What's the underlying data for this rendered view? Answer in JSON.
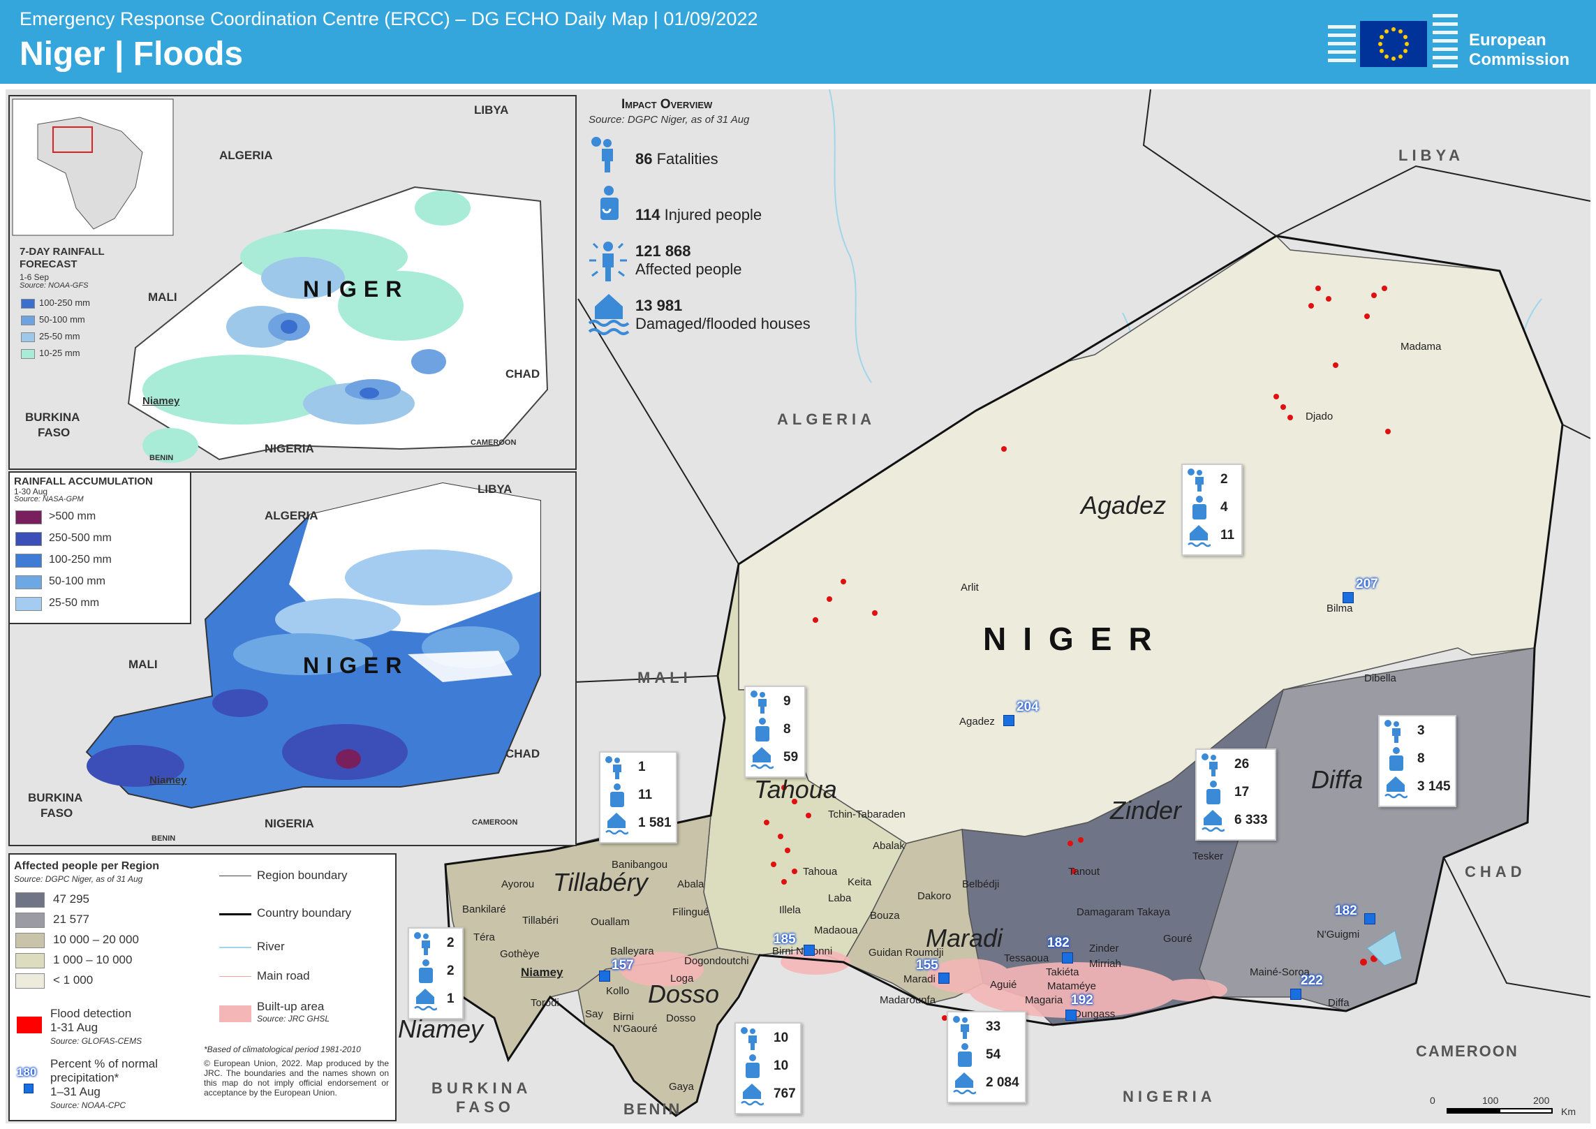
{
  "header": {
    "subtitle": "Emergency Response Coordination Centre (ERCC) – DG ECHO Daily Map | 01/09/2022",
    "title": "Niger | Floods",
    "logo_text_1": "European",
    "logo_text_2": "Commission"
  },
  "impact": {
    "title": "Impact overview",
    "source": "Source: DGPC Niger, as of 31 Aug",
    "fatalities_value": "86",
    "fatalities_label": "Fatalities",
    "injured_value": "114",
    "injured_label": "Injured people",
    "affected_value": "121 868",
    "affected_label": "Affected people",
    "houses_value": "13 981",
    "houses_label": "Damaged/flooded houses"
  },
  "inset1": {
    "title": "7-Day Rainfall Forecast",
    "period": "1-6 Sep",
    "source": "Source: NOAA-GFS",
    "classes": [
      "100-250 mm",
      "50-100 mm",
      "25-50 mm",
      "10-25 mm"
    ],
    "colors": [
      "#3a6fd0",
      "#6fa2e0",
      "#9dc8ea",
      "#a8ecd8"
    ],
    "labels": {
      "algeria": "ALGERIA",
      "libya": "LIBYA",
      "mali": "MALI",
      "chad": "CHAD",
      "niger": "NIGER",
      "burkina": "BURKINA",
      "faso": "FASO",
      "nigeria": "NIGERIA",
      "cameroon": "CAMEROON",
      "benin": "BENIN",
      "niamey": "Niamey"
    }
  },
  "inset2": {
    "title": "Rainfall Accumulation",
    "period": "1-30 Aug",
    "source": "Source: NASA-GPM",
    "classes": [
      ">500 mm",
      "250-500 mm",
      "100-250 mm",
      "50-100 mm",
      "25-50 mm"
    ],
    "colors": [
      "#7a1f5e",
      "#3c4fb8",
      "#3e7cd6",
      "#6ea8e4",
      "#a3ccf0"
    ],
    "labels": {
      "algeria": "ALGERIA",
      "libya": "LIBYA",
      "mali": "MALI",
      "chad": "CHAD",
      "niger": "NIGER",
      "burkina": "BURKINA",
      "faso": "FASO",
      "nigeria": "NIGERIA",
      "cameroon": "CAMEROON",
      "benin": "BENIN",
      "niamey": "Niamey"
    }
  },
  "legend": {
    "title": "Affected people per Region",
    "source": "Source: DGPC Niger, as of 31 Aug",
    "classes": [
      "47 295",
      "21 577",
      "10 000 – 20 000",
      "1 000 – 10 000",
      "< 1 000"
    ],
    "colors": [
      "#6f7487",
      "#9a9ba3",
      "#c9c3a9",
      "#dcdcbf",
      "#ecebdc"
    ],
    "flood_label_1": "Flood detection",
    "flood_label_2": "1-31 Aug",
    "flood_source": "Source: GLOFAS-CEMS",
    "pct_sample": "180",
    "pct_label_1": "Percent % of normal",
    "pct_label_2": "precipitation*",
    "pct_label_3": "1–31 Aug",
    "pct_source": "Source: NOAA-CPC",
    "region_boundary": "Region boundary",
    "country_boundary": "Country boundary",
    "river": "River",
    "main_road": "Main road",
    "built_up": "Built-up area",
    "built_up_source": "Source: JRC GHSL",
    "footnote": "*Based of climatological period 1981-2010",
    "copyright": "© European Union, 2022. Map produced by the JRC. The boundaries and the names shown on this map do not imply official endorsement or acceptance by the European Union."
  },
  "map_labels": {
    "libya": "LIBYA",
    "algeria": "ALGERIA",
    "mali": "MALI",
    "chad": "CHAD",
    "niger": "NIGER",
    "nigeria": "NIGERIA",
    "cameroon": "CAMEROON",
    "burkina": "BURKINA",
    "faso": "FASO",
    "benin": "BENIN",
    "agadez_region": "Agadez",
    "tahoua_region": "Tahoua",
    "tillabery_region": "Tillabéry",
    "dosso_region": "Dosso",
    "niamey_region": "Niamey",
    "maradi_region": "Maradi",
    "zinder_region": "Zinder",
    "diffa_region": "Diffa"
  },
  "cities": [
    "Madama",
    "Djado",
    "Arlit",
    "Bilma",
    "Agadez",
    "Dibella",
    "Tchin-Tabaraden",
    "Abalak",
    "Tahoua",
    "Keita",
    "Laba",
    "Illela",
    "Bouza",
    "Madaoua",
    "Birni N'Konni",
    "Dakoro",
    "Belbédji",
    "Tanout",
    "Tesker",
    "Damagaram Takaya",
    "Zinder",
    "Gouré",
    "Mirriah",
    "Takiéta",
    "Mataméye",
    "Magaria",
    "Dungass",
    "Tessaoua",
    "Aguié",
    "Maradi",
    "Madarounfa",
    "Guidan Roumdji",
    "N'Guigmi",
    "Mainé-Soroa",
    "Diffa",
    "Banibangou",
    "Abala",
    "Ayorou",
    "Bankilaré",
    "Tillabéri",
    "Filingué",
    "Ouallam",
    "Téra",
    "Gothèye",
    "Balleyara",
    "Dogondoutchi",
    "Niamey",
    "Kollo",
    "Loga",
    "Torodi",
    "Say",
    "Birni N'Gaouré",
    "Dosso",
    "Gaya"
  ],
  "stat_cards": [
    {
      "region": "Agadez",
      "fatalities": "2",
      "injured": "4",
      "houses": "11"
    },
    {
      "region": "Tahoua",
      "fatalities": "9",
      "injured": "8",
      "houses": "59"
    },
    {
      "region": "Tillabéry",
      "fatalities": "1",
      "injured": "11",
      "houses": "1 581"
    },
    {
      "region": "Niamey",
      "fatalities": "2",
      "injured": "2",
      "houses": "1"
    },
    {
      "region": "Dosso",
      "fatalities": "10",
      "injured": "10",
      "houses": "767"
    },
    {
      "region": "Maradi",
      "fatalities": "33",
      "injured": "54",
      "houses": "2 084"
    },
    {
      "region": "Zinder",
      "fatalities": "26",
      "injured": "17",
      "houses": "6 333"
    },
    {
      "region": "Diffa",
      "fatalities": "3",
      "injured": "8",
      "houses": "3 145"
    }
  ],
  "precip_markers": [
    "207",
    "204",
    "185",
    "157",
    "155",
    "182",
    "192",
    "182",
    "222"
  ],
  "scale": {
    "v0": "0",
    "v1": "100",
    "v2": "200",
    "unit": "Km"
  }
}
